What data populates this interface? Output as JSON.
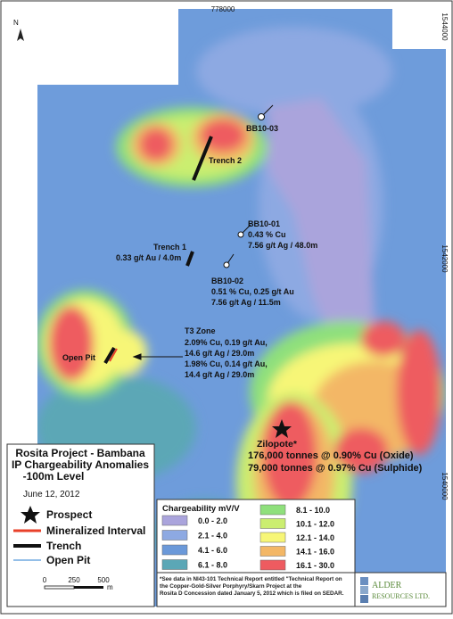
{
  "map": {
    "easting": "778000",
    "northings": [
      "1544000",
      "1542000",
      "1540000"
    ],
    "north": "N",
    "labels": {
      "bb10_03": "BB10-03",
      "trench_2": "Trench 2",
      "bb10_01": [
        "BB10-01",
        "0.43 % Cu",
        "7.56 g/t Ag / 48.0m"
      ],
      "trench_1": [
        "Trench 1",
        "0.33 g/t Au / 4.0m"
      ],
      "bb10_02": [
        "BB10-02",
        "0.51 % Cu, 0.25 g/t Au",
        "7.56 g/t Ag / 11.5m"
      ],
      "t3_zone": [
        "T3 Zone",
        "2.09% Cu, 0.19 g/t Au,",
        "14.6 g/t Ag / 29.0m",
        "1.98% Cu, 0.14 g/t Au,",
        "14.4 g/t Ag / 29.0m"
      ],
      "open_pit": "Open Pit",
      "zilopote": [
        "Zilopote*",
        "176,000 tonnes @ 0.90% Cu (Oxide)",
        "79,000 tonnes @ 0.97% Cu (Sulphide)"
      ]
    }
  },
  "legend": {
    "title": [
      "Rosita Project - Bambana",
      "IP Chargeability Anomalies",
      "-100m Level"
    ],
    "date": "June 12, 2012",
    "items": [
      "Prospect",
      "Mineralized Interval",
      "Trench",
      "Open Pit"
    ],
    "scale": [
      "0",
      "250",
      "500",
      "m"
    ]
  },
  "chargeability": {
    "title": "Chargeability mV/V",
    "classes": [
      {
        "label": "0.0 - 2.0",
        "color": "#aaa4dc"
      },
      {
        "label": "2.1 - 4.0",
        "color": "#8da9e2"
      },
      {
        "label": "4.1 - 6.0",
        "color": "#6b99d9"
      },
      {
        "label": "6.1 - 8.0",
        "color": "#5ba7b6"
      },
      {
        "label": "8.1 - 10.0",
        "color": "#8fe07c"
      },
      {
        "label": "10.1 - 12.0",
        "color": "#cbee70"
      },
      {
        "label": "12.1 - 14.0",
        "color": "#f7f677"
      },
      {
        "label": "14.1 - 16.0",
        "color": "#f3b766"
      },
      {
        "label": "16.1 - 30.0",
        "color": "#ee5b60"
      }
    ]
  },
  "footnote": [
    "*See data in NI43-101 Technical Report  entitled \"Technical Report on",
    "the Copper-Gold-Silver Porphyry/Skarn Project at the",
    "Rosita D Concession dated January 5, 2012 which is filed on SEDAR."
  ],
  "logo": [
    "ALDER",
    "RESOURCES LTD."
  ]
}
